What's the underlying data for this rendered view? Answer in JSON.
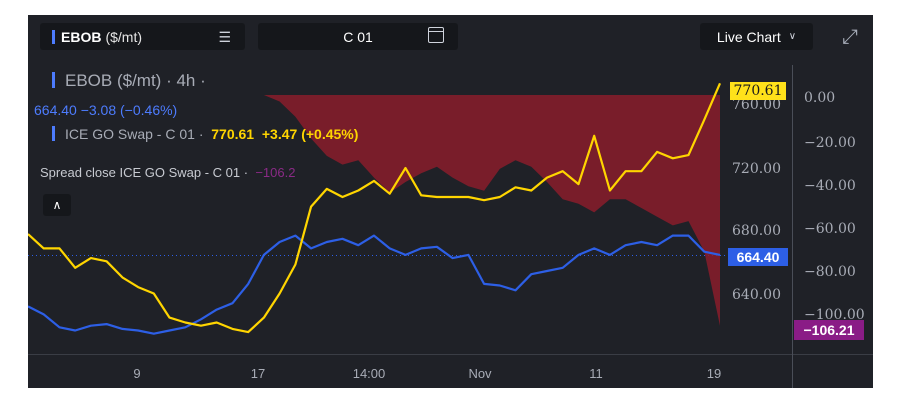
{
  "toolbar": {
    "symbol_name": "EBOB",
    "symbol_unit": "($/mt)",
    "series": "C 01",
    "view_mode": "Live Chart"
  },
  "legend": {
    "main_title": "EBOB ($/mt) · 4h ·",
    "main_values": "664.40 −3.08 (−0.46%)",
    "second_label": "ICE GO Swap - C 01 ·",
    "second_price": "770.61",
    "second_change": "+3.47 (+0.45%)",
    "spread_label": "Spread close ICE GO Swap - C 01 ·",
    "spread_value": "−106.2"
  },
  "axes": {
    "price_ticks": [
      "760.00",
      "720.00",
      "680.00",
      "640.00"
    ],
    "spread_ticks": [
      "0.00",
      "−20.00",
      "−40.00",
      "−60.00",
      "−80.00",
      "−100.00"
    ],
    "x_ticks": [
      "9",
      "17",
      "14:00",
      "Nov",
      "11",
      "19"
    ]
  },
  "badges": {
    "ice_go_last": "770.61",
    "ebob_last": "664.40",
    "spread_last": "−106.21"
  },
  "colors": {
    "ebob": "#2d5fe6",
    "ice_go": "#ffd500",
    "spread_fill": "#8a1c2c",
    "background": "#1f2127"
  },
  "icons": [
    "list-icon",
    "calendar-icon",
    "chevron-down-icon",
    "expand-icon",
    "chevron-up-icon"
  ],
  "chart_data": {
    "type": "line",
    "x_labels": [
      "9",
      "17",
      "14:00",
      "Nov",
      "11",
      "19"
    ],
    "series": [
      {
        "name": "EBOB ($/mt)",
        "axis": "price",
        "color": "#2d5fe6",
        "values": [
          632,
          627,
          619,
          617,
          620,
          621,
          618,
          617,
          615,
          617,
          619,
          624,
          630,
          634,
          646,
          664,
          672,
          676,
          668,
          672,
          674,
          670,
          676,
          668,
          664,
          668,
          669,
          662,
          664,
          646,
          645,
          642,
          652,
          654,
          656,
          664,
          668,
          664,
          670,
          672,
          670,
          676,
          676,
          666,
          664
        ]
      },
      {
        "name": "ICE GO Swap - C 01",
        "axis": "price",
        "color": "#ffd500",
        "values": [
          677,
          668,
          668,
          656,
          662,
          660,
          650,
          644,
          640,
          625,
          622,
          620,
          622,
          618,
          616,
          625,
          640,
          658,
          694,
          705,
          700,
          704,
          710,
          702,
          718,
          701,
          700,
          700,
          700,
          698,
          700,
          706,
          704,
          712,
          716,
          708,
          738,
          704,
          716,
          716,
          728,
          724,
          726,
          748,
          770.61
        ]
      },
      {
        "name": "Spread close ICE GO Swap - C 01",
        "axis": "spread",
        "color": "#8a1c2c",
        "values": [
          0,
          0,
          0,
          0,
          0,
          0,
          0,
          0,
          0,
          0,
          0,
          0,
          0,
          0,
          0,
          0,
          -3,
          -10,
          -20,
          -28,
          -32,
          -30,
          -38,
          -45,
          -40,
          -36,
          -33,
          -38,
          -42,
          -44,
          -34,
          -30,
          -33,
          -40,
          -48,
          -50,
          -54,
          -48,
          -48,
          -52,
          -56,
          -60,
          -58,
          -72,
          -106.21
        ]
      }
    ],
    "price_axis": {
      "ticks": [
        760,
        720,
        680,
        640
      ],
      "range": [
        608,
        782
      ]
    },
    "spread_axis": {
      "ticks": [
        0,
        -20,
        -40,
        -60,
        -80,
        -100
      ],
      "range": [
        -115,
        0
      ]
    }
  }
}
